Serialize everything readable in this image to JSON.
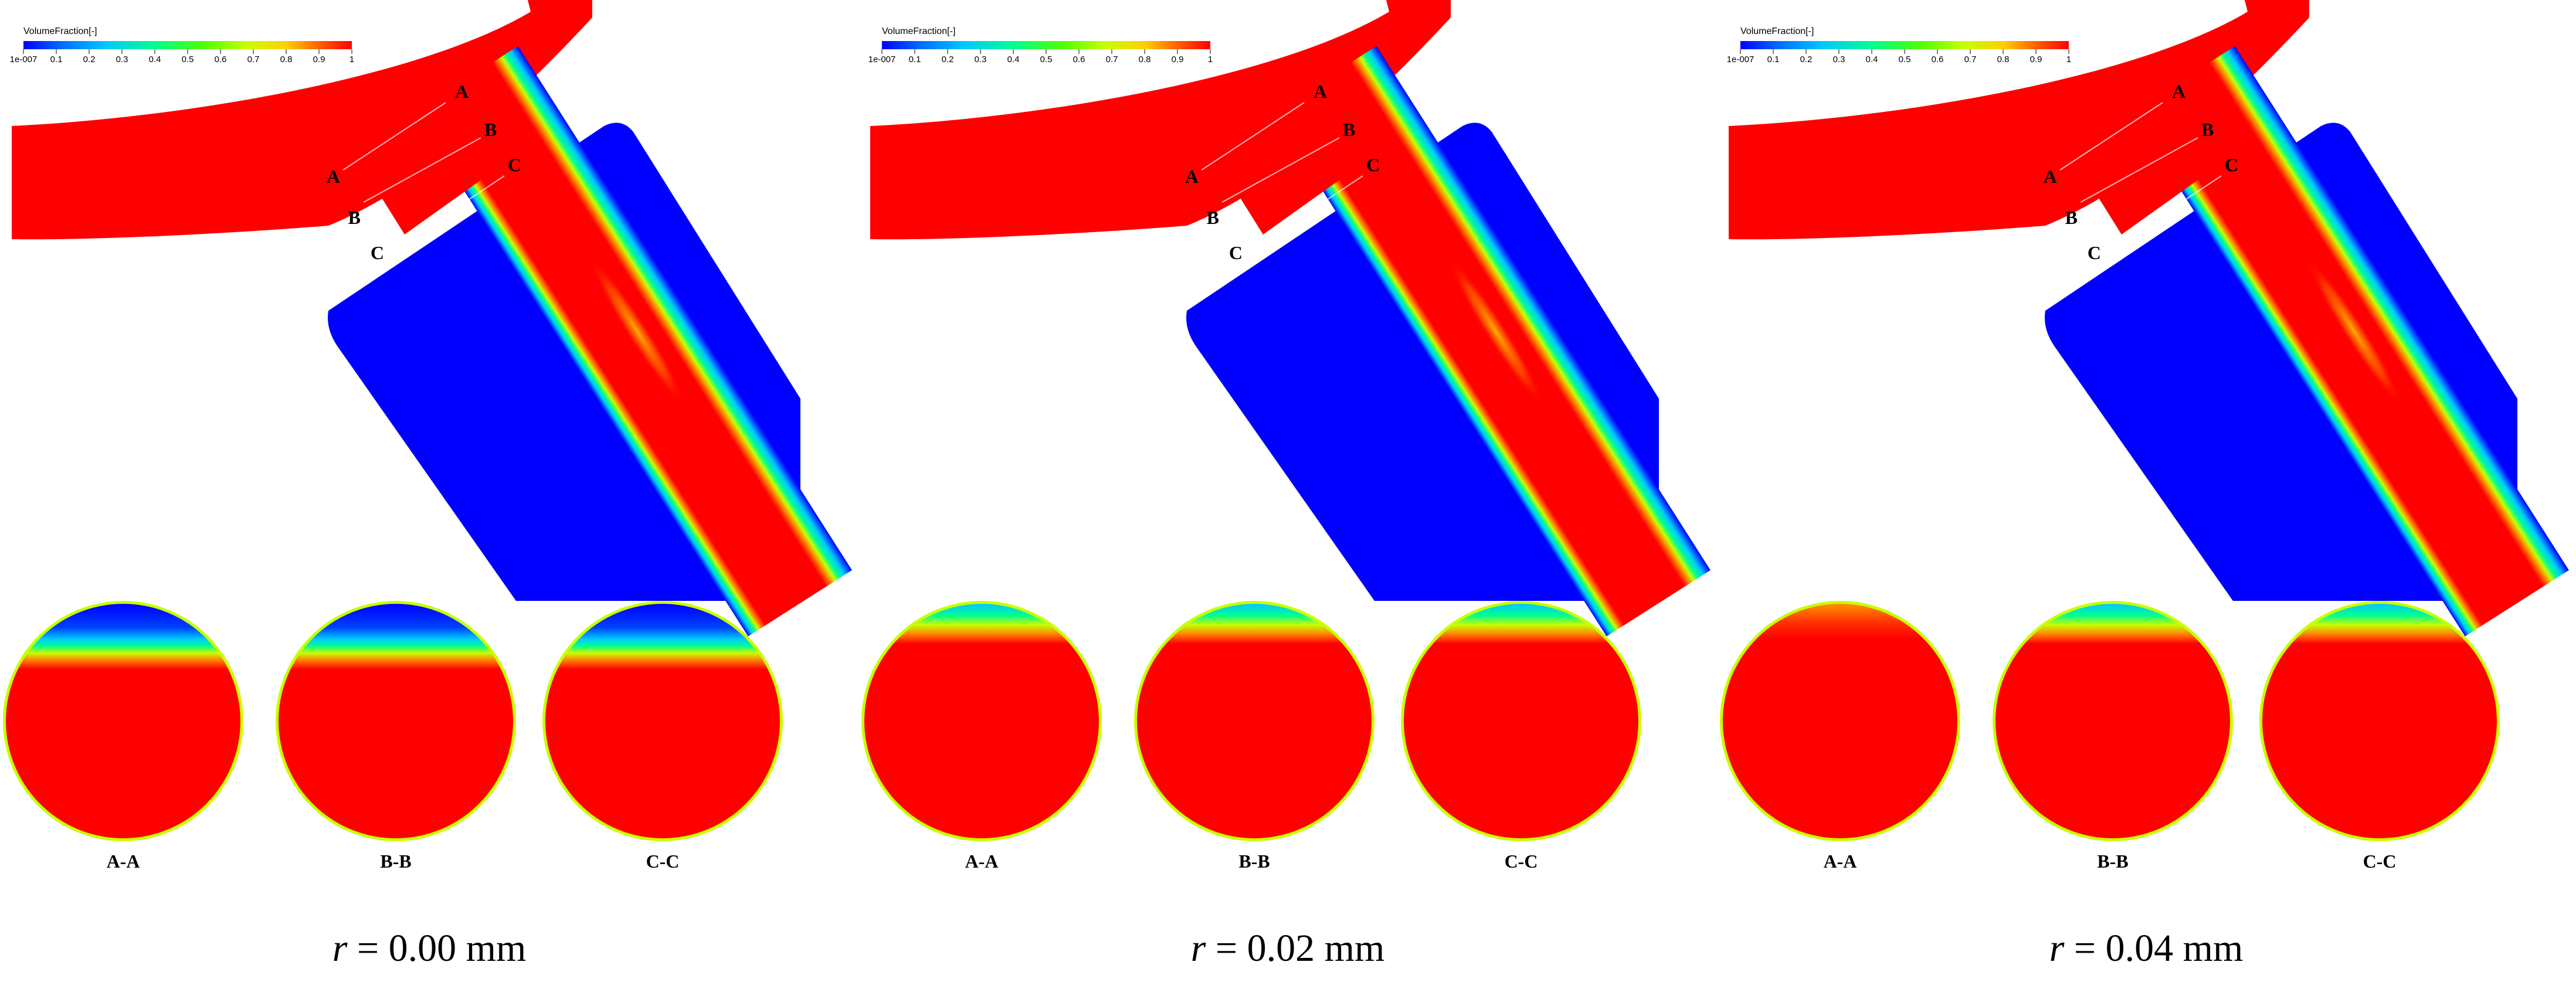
{
  "legend": {
    "title": "VolumeFraction[-]",
    "ticks": [
      "1e-007",
      "0.1",
      "0.2",
      "0.3",
      "0.4",
      "0.5",
      "0.6",
      "0.7",
      "0.8",
      "0.9",
      "1"
    ]
  },
  "section_markers": [
    "A",
    "B",
    "C"
  ],
  "section_labels": [
    "A-A",
    "B-B",
    "C-C"
  ],
  "panels": [
    {
      "r_symbol": "r",
      "r_text": " = 0.00 mm"
    },
    {
      "r_symbol": "r",
      "r_text": " = 0.02 mm"
    },
    {
      "r_symbol": "r",
      "r_text": " = 0.04 mm"
    }
  ],
  "colors": {
    "liquid": "#ff0000",
    "gas": "#0000ff",
    "colormap": [
      "#0000ff",
      "#0070ff",
      "#00c8ff",
      "#00ff90",
      "#50ff00",
      "#c8ff00",
      "#ffd000",
      "#ff6000",
      "#ff0000"
    ]
  }
}
